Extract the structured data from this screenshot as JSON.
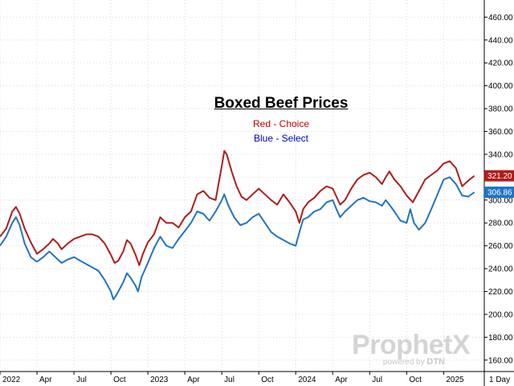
{
  "chart_data": {
    "type": "line",
    "title": "Boxed Beef Prices",
    "subtitle_lines": [
      "Red - Choice",
      "Blue - Select"
    ],
    "xlabel": "",
    "ylabel": "",
    "ylim": [
      150,
      475
    ],
    "yticks": [
      160,
      180,
      200,
      220,
      240,
      260,
      280,
      300,
      320,
      340,
      360,
      380,
      400,
      420,
      440,
      460
    ],
    "xticks": [
      {
        "label": "2022",
        "month": 0
      },
      {
        "label": "Apr",
        "month": 3
      },
      {
        "label": "Jul",
        "month": 6
      },
      {
        "label": "Oct",
        "month": 9
      },
      {
        "label": "2023",
        "month": 12
      },
      {
        "label": "Apr",
        "month": 15
      },
      {
        "label": "Jul",
        "month": 18
      },
      {
        "label": "Oct",
        "month": 21
      },
      {
        "label": "2024",
        "month": 24
      },
      {
        "label": "Apr",
        "month": 27
      },
      {
        "label": "Jul",
        "month": 30
      },
      {
        "label": "Oct",
        "month": 33
      },
      {
        "label": "2025",
        "month": 36
      }
    ],
    "period_label": "1 Day",
    "grid": true,
    "series": [
      {
        "name": "Choice",
        "color": "#b01c1c",
        "last_value": "321.20",
        "points": [
          [
            0.0,
            268
          ],
          [
            0.5,
            275
          ],
          [
            1.0,
            290
          ],
          [
            1.3,
            294
          ],
          [
            1.6,
            288
          ],
          [
            2.0,
            275
          ],
          [
            2.5,
            263
          ],
          [
            3.0,
            253
          ],
          [
            3.5,
            257
          ],
          [
            4.0,
            262
          ],
          [
            4.3,
            266
          ],
          [
            4.7,
            262
          ],
          [
            5.0,
            257
          ],
          [
            5.5,
            262
          ],
          [
            6.0,
            266
          ],
          [
            6.5,
            268
          ],
          [
            7.0,
            270
          ],
          [
            7.5,
            270
          ],
          [
            8.0,
            268
          ],
          [
            8.5,
            262
          ],
          [
            9.0,
            252
          ],
          [
            9.3,
            245
          ],
          [
            9.6,
            247
          ],
          [
            10.0,
            255
          ],
          [
            10.3,
            265
          ],
          [
            10.6,
            262
          ],
          [
            11.0,
            252
          ],
          [
            11.3,
            243
          ],
          [
            11.6,
            253
          ],
          [
            12.0,
            263
          ],
          [
            12.5,
            270
          ],
          [
            13.0,
            285
          ],
          [
            13.5,
            280
          ],
          [
            14.0,
            280
          ],
          [
            14.5,
            276
          ],
          [
            15.0,
            285
          ],
          [
            15.5,
            290
          ],
          [
            16.0,
            305
          ],
          [
            16.5,
            308
          ],
          [
            17.0,
            302
          ],
          [
            17.5,
            300
          ],
          [
            18.0,
            330
          ],
          [
            18.2,
            343
          ],
          [
            18.4,
            340
          ],
          [
            18.8,
            325
          ],
          [
            19.2,
            312
          ],
          [
            19.6,
            303
          ],
          [
            20.0,
            300
          ],
          [
            20.5,
            305
          ],
          [
            21.0,
            310
          ],
          [
            21.5,
            305
          ],
          [
            22.0,
            300
          ],
          [
            22.5,
            296
          ],
          [
            23.0,
            305
          ],
          [
            23.5,
            298
          ],
          [
            24.0,
            290
          ],
          [
            24.3,
            280
          ],
          [
            24.6,
            292
          ],
          [
            25.0,
            298
          ],
          [
            25.5,
            302
          ],
          [
            26.0,
            308
          ],
          [
            26.5,
            312
          ],
          [
            27.0,
            310
          ],
          [
            27.3,
            303
          ],
          [
            27.6,
            296
          ],
          [
            28.0,
            300
          ],
          [
            28.5,
            310
          ],
          [
            29.0,
            318
          ],
          [
            29.5,
            322
          ],
          [
            30.0,
            324
          ],
          [
            30.5,
            320
          ],
          [
            31.0,
            314
          ],
          [
            31.3,
            320
          ],
          [
            31.6,
            325
          ],
          [
            32.0,
            318
          ],
          [
            32.5,
            312
          ],
          [
            33.0,
            304
          ],
          [
            33.5,
            298
          ],
          [
            34.0,
            308
          ],
          [
            34.5,
            318
          ],
          [
            35.0,
            322
          ],
          [
            35.5,
            326
          ],
          [
            36.0,
            332
          ],
          [
            36.5,
            334
          ],
          [
            37.0,
            328
          ],
          [
            37.5,
            312
          ],
          [
            38.0,
            317
          ],
          [
            38.5,
            321.2
          ]
        ]
      },
      {
        "name": "Select",
        "color": "#1f74c4",
        "last_value": "306.86",
        "points": [
          [
            0.0,
            260
          ],
          [
            0.5,
            268
          ],
          [
            1.0,
            280
          ],
          [
            1.3,
            285
          ],
          [
            1.6,
            278
          ],
          [
            2.0,
            262
          ],
          [
            2.5,
            250
          ],
          [
            3.0,
            246
          ],
          [
            3.5,
            250
          ],
          [
            4.0,
            255
          ],
          [
            4.5,
            250
          ],
          [
            5.0,
            245
          ],
          [
            5.5,
            248
          ],
          [
            6.0,
            250
          ],
          [
            6.5,
            247
          ],
          [
            7.0,
            244
          ],
          [
            7.5,
            241
          ],
          [
            8.0,
            238
          ],
          [
            8.5,
            230
          ],
          [
            9.0,
            220
          ],
          [
            9.2,
            213
          ],
          [
            9.5,
            218
          ],
          [
            10.0,
            228
          ],
          [
            10.3,
            236
          ],
          [
            10.6,
            232
          ],
          [
            11.0,
            225
          ],
          [
            11.2,
            220
          ],
          [
            11.5,
            233
          ],
          [
            12.0,
            245
          ],
          [
            12.5,
            258
          ],
          [
            13.0,
            268
          ],
          [
            13.5,
            260
          ],
          [
            14.0,
            258
          ],
          [
            14.5,
            266
          ],
          [
            15.0,
            273
          ],
          [
            15.5,
            280
          ],
          [
            16.0,
            290
          ],
          [
            16.5,
            288
          ],
          [
            17.0,
            282
          ],
          [
            17.5,
            290
          ],
          [
            18.0,
            300
          ],
          [
            18.2,
            305
          ],
          [
            18.5,
            296
          ],
          [
            19.0,
            285
          ],
          [
            19.5,
            278
          ],
          [
            20.0,
            280
          ],
          [
            20.5,
            285
          ],
          [
            21.0,
            288
          ],
          [
            21.5,
            280
          ],
          [
            22.0,
            272
          ],
          [
            22.5,
            268
          ],
          [
            23.0,
            265
          ],
          [
            23.5,
            262
          ],
          [
            24.0,
            260
          ],
          [
            24.3,
            272
          ],
          [
            24.6,
            283
          ],
          [
            25.0,
            285
          ],
          [
            25.5,
            290
          ],
          [
            26.0,
            292
          ],
          [
            26.5,
            298
          ],
          [
            27.0,
            300
          ],
          [
            27.3,
            292
          ],
          [
            27.6,
            285
          ],
          [
            28.0,
            290
          ],
          [
            28.5,
            295
          ],
          [
            29.0,
            300
          ],
          [
            29.5,
            302
          ],
          [
            30.0,
            299
          ],
          [
            30.5,
            298
          ],
          [
            31.0,
            295
          ],
          [
            31.3,
            300
          ],
          [
            31.6,
            296
          ],
          [
            32.0,
            290
          ],
          [
            32.5,
            282
          ],
          [
            33.0,
            280
          ],
          [
            33.3,
            292
          ],
          [
            33.6,
            280
          ],
          [
            34.0,
            274
          ],
          [
            34.5,
            280
          ],
          [
            35.0,
            292
          ],
          [
            35.5,
            305
          ],
          [
            36.0,
            318
          ],
          [
            36.5,
            320
          ],
          [
            37.0,
            314
          ],
          [
            37.5,
            304
          ],
          [
            38.0,
            303
          ],
          [
            38.5,
            306.86
          ]
        ]
      }
    ]
  },
  "watermark": {
    "brand": "ProphetX",
    "tagline_prefix": "powered by",
    "tagline_brand": "DTN"
  }
}
